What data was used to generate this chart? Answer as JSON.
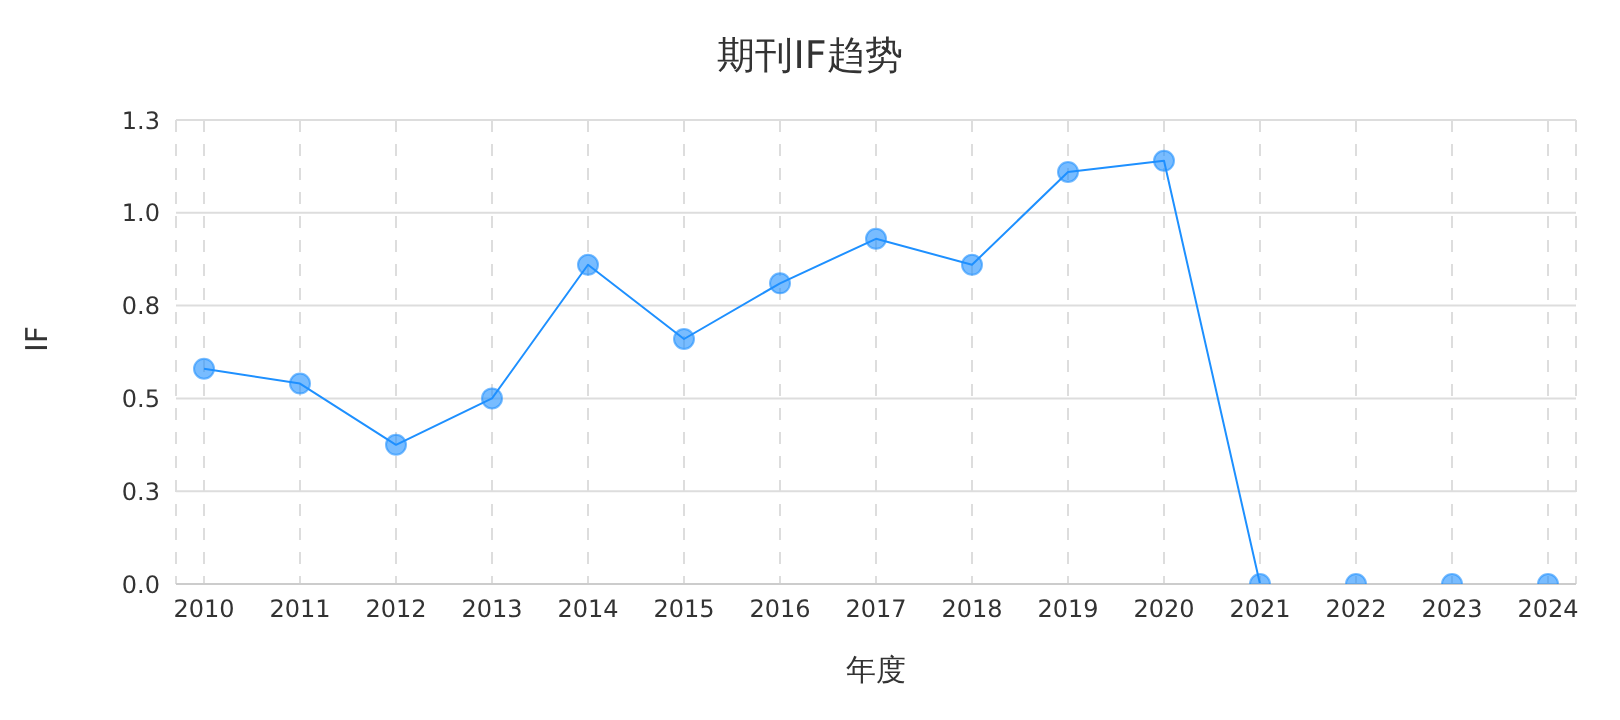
{
  "chart_data": {
    "type": "line",
    "title": "期刊IF趋势",
    "xlabel": "年度",
    "ylabel": "IF",
    "categories": [
      "2010",
      "2011",
      "2012",
      "2013",
      "2014",
      "2015",
      "2016",
      "2017",
      "2018",
      "2019",
      "2020",
      "2021",
      "2022",
      "2023",
      "2024"
    ],
    "series": [
      {
        "color": "#1e90ff",
        "values": [
          0.58,
          0.54,
          0.375,
          0.5,
          0.86,
          0.66,
          0.81,
          0.93,
          0.86,
          1.11,
          1.14,
          0,
          0,
          0,
          0
        ]
      }
    ],
    "ylim": [
      0,
      1.25
    ],
    "yticks": [
      {
        "value": 0,
        "label": "0.0"
      },
      {
        "value": 0.25,
        "label": "0.3"
      },
      {
        "value": 0.5,
        "label": "0.5"
      },
      {
        "value": 0.75,
        "label": "0.8"
      },
      {
        "value": 1,
        "label": "1.0"
      },
      {
        "value": 1.25,
        "label": "1.3"
      }
    ],
    "grid": true,
    "marker": "circle",
    "line_style": "solid"
  }
}
